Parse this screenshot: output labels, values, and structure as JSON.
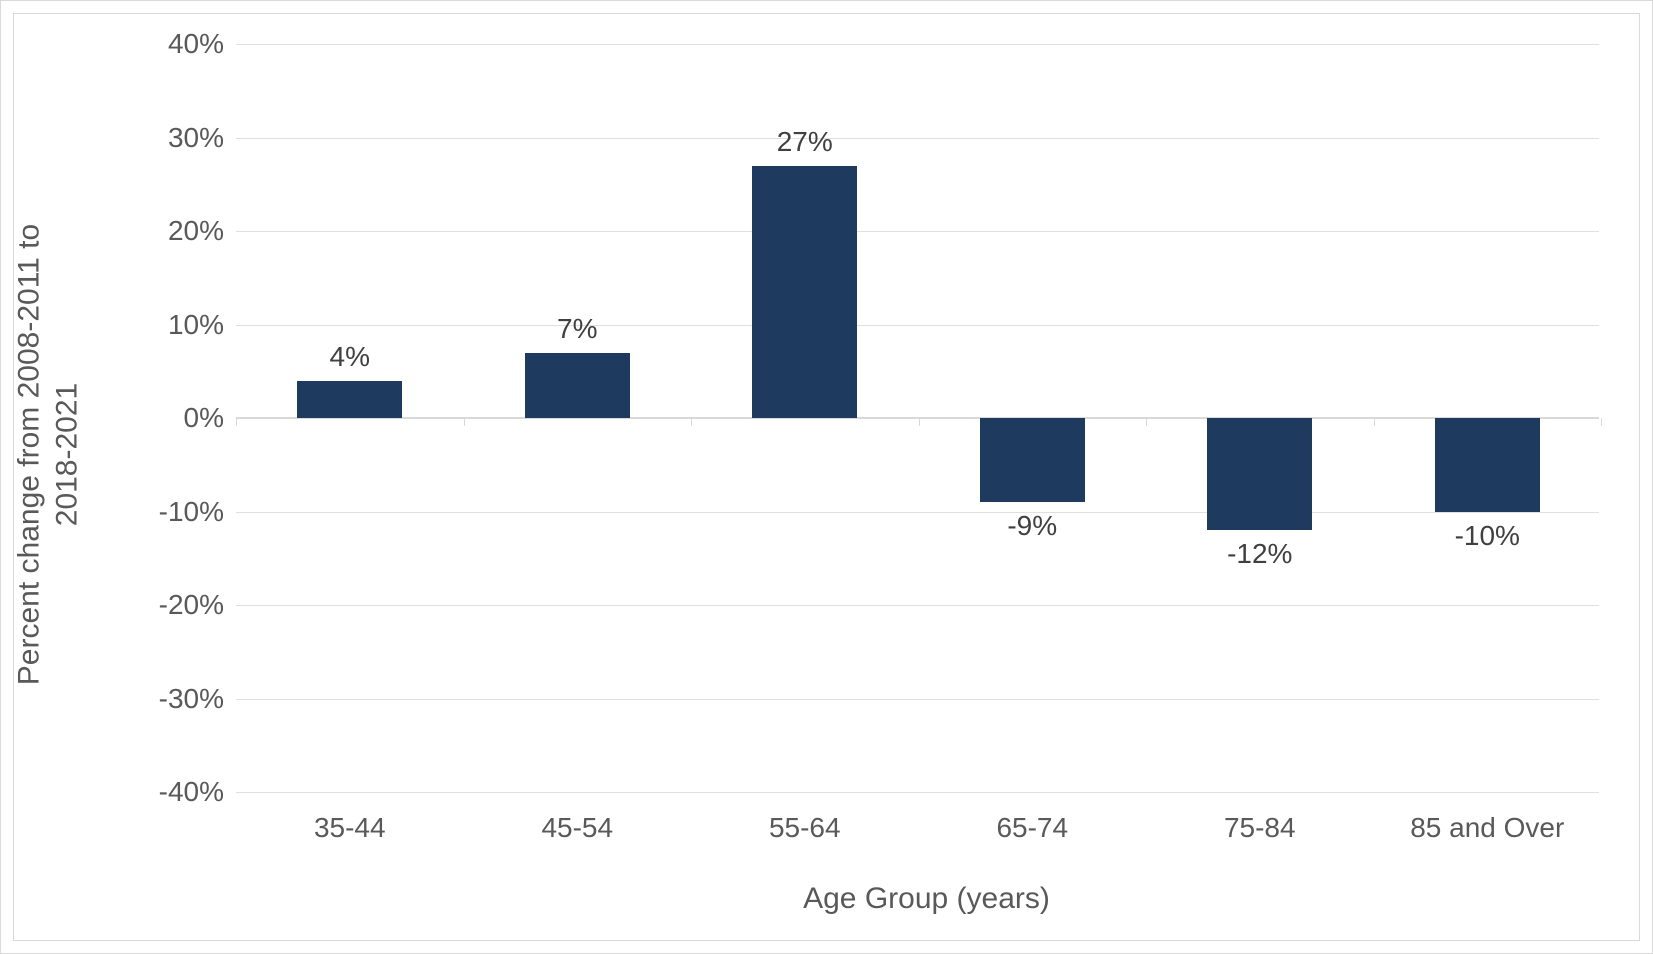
{
  "chart": {
    "type": "bar",
    "y_axis_title_line1": "Percent change from 2008-2011 to",
    "y_axis_title_line2": "2018-2021",
    "x_axis_title": "Age Group (years)",
    "categories": [
      "35-44",
      "45-54",
      "55-64",
      "65-74",
      "75-84",
      "85 and Over"
    ],
    "values": [
      4,
      7,
      27,
      -9,
      -12,
      -10
    ],
    "value_labels": [
      "4%",
      "7%",
      "27%",
      "-9%",
      "-12%",
      "-10%"
    ],
    "bar_color": "#1f3a5f",
    "ylim_min": -40,
    "ylim_max": 40,
    "ytick_step": 10,
    "y_ticks": [
      -40,
      -30,
      -20,
      -10,
      0,
      10,
      20,
      30,
      40
    ],
    "y_tick_labels": [
      "-40%",
      "-30%",
      "-20%",
      "-10%",
      "0%",
      "10%",
      "20%",
      "30%",
      "40%"
    ],
    "grid_color": "#e0e0e0",
    "axis_line_color": "#d9d9d9",
    "background_color": "#ffffff",
    "text_color": "#595959",
    "data_label_color": "#404040",
    "axis_title_fontsize": 30,
    "tick_label_fontsize": 28,
    "data_label_fontsize": 28,
    "bar_width_ratio": 0.46,
    "frame_border_color": "#d9d9d9"
  }
}
